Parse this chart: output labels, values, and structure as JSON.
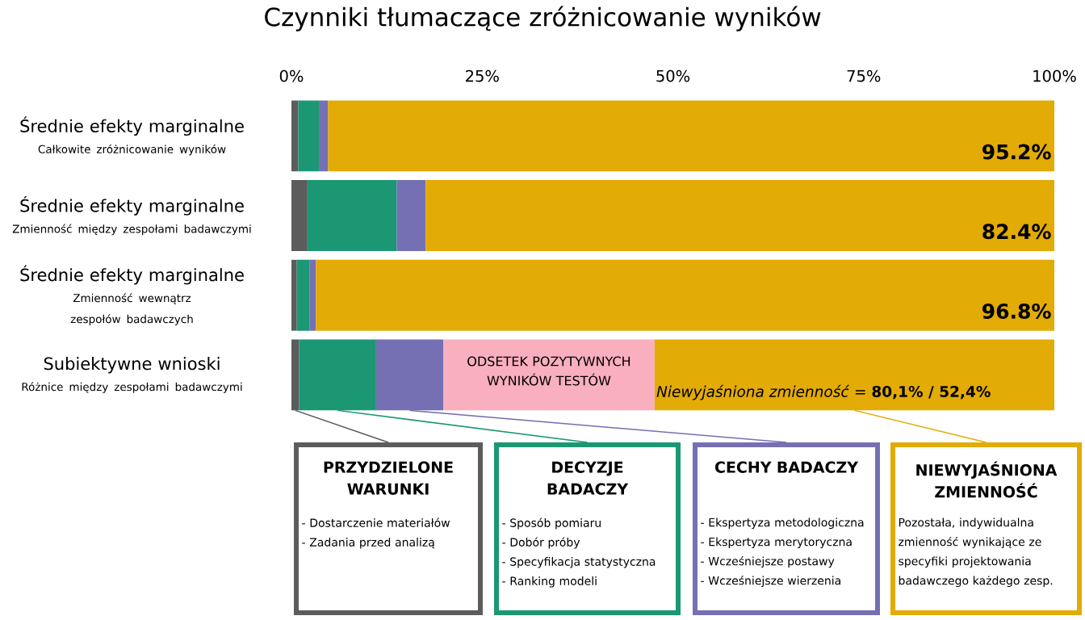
{
  "chart_data": {
    "type": "bar",
    "orientation": "horizontal",
    "stacked": true,
    "title": "Czynniki tłumaczące zróżnicowanie wyników",
    "categories": [
      "Średnie efekty marginalne",
      "Średnie efekty marginalne",
      "Średnie efekty marginalne",
      "Subiektywne wnioski"
    ],
    "series": [
      {
        "name": "PRZYDZIELONE WARUNKI",
        "color": "#5c5c5c",
        "values": [
          0.9,
          2.1,
          0.7,
          1.0
        ]
      },
      {
        "name": "DECYZJE BADACZY",
        "color": "#1b9873",
        "values": [
          2.7,
          11.7,
          1.7,
          10.1
        ]
      },
      {
        "name": "CECHY BADACZY",
        "color": "#7570b3",
        "values": [
          1.2,
          3.8,
          0.8,
          8.8
        ]
      },
      {
        "name": "ODSETEK POZYTYWNYCH WYNIKÓW TESTÓW",
        "color": "#f9afbd",
        "values": [
          null,
          null,
          null,
          27.7
        ]
      },
      {
        "name": "NIEWYJAŚNIONA ZMIENNOŚĆ",
        "color": "#e2ab05",
        "values": [
          95.2,
          82.4,
          96.8,
          52.4
        ],
        "value_labels": [
          "95.2%",
          "82.4%",
          "96.8%",
          null
        ]
      }
    ],
    "xlim": [
      0,
      100
    ],
    "xticks": [
      {
        "value": 0,
        "label": "0%"
      },
      {
        "value": 25,
        "label": "25%"
      },
      {
        "value": 50,
        "label": "50%"
      },
      {
        "value": 75,
        "label": "75%"
      },
      {
        "value": 100,
        "label": "100%"
      }
    ],
    "grid": false,
    "annotations": [
      "Całkowite zróżnicowanie wyników",
      "Zmienność między zespołami badawczymi",
      "Zmienność wewnątrz zespołów badawczych",
      "Różnice między zespołami badawczymi",
      "*Niewyjaśniona zmienność* = **80,1% / 52,4%**",
      "- Dostarczenie materiałów",
      "- Zadania przed analizą",
      "- Sposób pomiaru",
      "- Dobór próby",
      "- Specyfikacja statystyczna",
      "- Ranking modeli",
      "- Ekspertyza metodologiczna",
      "- Ekspertyza merytoryczna",
      "- Wcześniejsze postawy",
      "- Wcześniejsze wierzenia",
      "Pozostała, indywidualna zmienność wynikające ze specyfiki projektowania badawczego każdego zesp."
    ]
  }
}
